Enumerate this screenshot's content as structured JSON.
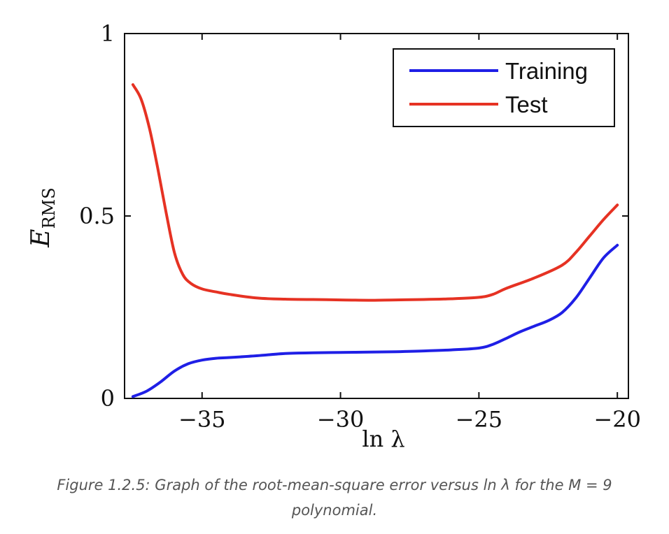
{
  "caption": {
    "line1": "Figure 1.2.5: Graph of the root-mean-square error versus ln λ for the M = 9",
    "line2": "polynomial."
  },
  "chart_data": {
    "type": "line",
    "xlabel": "ln λ",
    "ylabel": "E_RMS",
    "xlim": [
      -37.8,
      -19.6
    ],
    "ylim": [
      0,
      1
    ],
    "x_ticks": [
      -35,
      -30,
      -25,
      -20
    ],
    "x_tick_labels": [
      "−35",
      "−30",
      "−25",
      "−20"
    ],
    "y_ticks": [
      0,
      0.5,
      1
    ],
    "y_tick_labels": [
      "0",
      "0.5",
      "1"
    ],
    "grid": false,
    "legend": "top-right",
    "series": [
      {
        "name": "Training",
        "color": "#1f1fe6",
        "x": [
          -37.5,
          -37.0,
          -36.5,
          -36.0,
          -35.5,
          -35.0,
          -34.5,
          -34.0,
          -33.0,
          -32.0,
          -31.0,
          -30.0,
          -29.0,
          -28.0,
          -27.0,
          -26.0,
          -25.0,
          -24.5,
          -24.0,
          -23.5,
          -23.0,
          -22.5,
          -22.0,
          -21.5,
          -21.0,
          -20.5,
          -20.0
        ],
        "y": [
          0.005,
          0.02,
          0.045,
          0.075,
          0.095,
          0.105,
          0.11,
          0.112,
          0.117,
          0.123,
          0.125,
          0.126,
          0.127,
          0.128,
          0.13,
          0.133,
          0.138,
          0.148,
          0.165,
          0.183,
          0.198,
          0.213,
          0.235,
          0.275,
          0.33,
          0.385,
          0.42
        ]
      },
      {
        "name": "Test",
        "color": "#e63223",
        "x": [
          -37.5,
          -37.2,
          -36.9,
          -36.6,
          -36.3,
          -36.0,
          -35.7,
          -35.4,
          -35.0,
          -34.5,
          -34.0,
          -33.0,
          -32.0,
          -31.0,
          -30.0,
          -29.0,
          -28.0,
          -27.0,
          -26.0,
          -25.0,
          -24.5,
          -24.0,
          -23.0,
          -22.0,
          -21.5,
          -21.0,
          -20.5,
          -20.0
        ],
        "y": [
          0.86,
          0.82,
          0.74,
          0.63,
          0.51,
          0.4,
          0.34,
          0.315,
          0.3,
          0.292,
          0.285,
          0.275,
          0.272,
          0.271,
          0.27,
          0.269,
          0.27,
          0.271,
          0.273,
          0.277,
          0.285,
          0.302,
          0.33,
          0.365,
          0.4,
          0.445,
          0.49,
          0.53
        ]
      }
    ]
  }
}
